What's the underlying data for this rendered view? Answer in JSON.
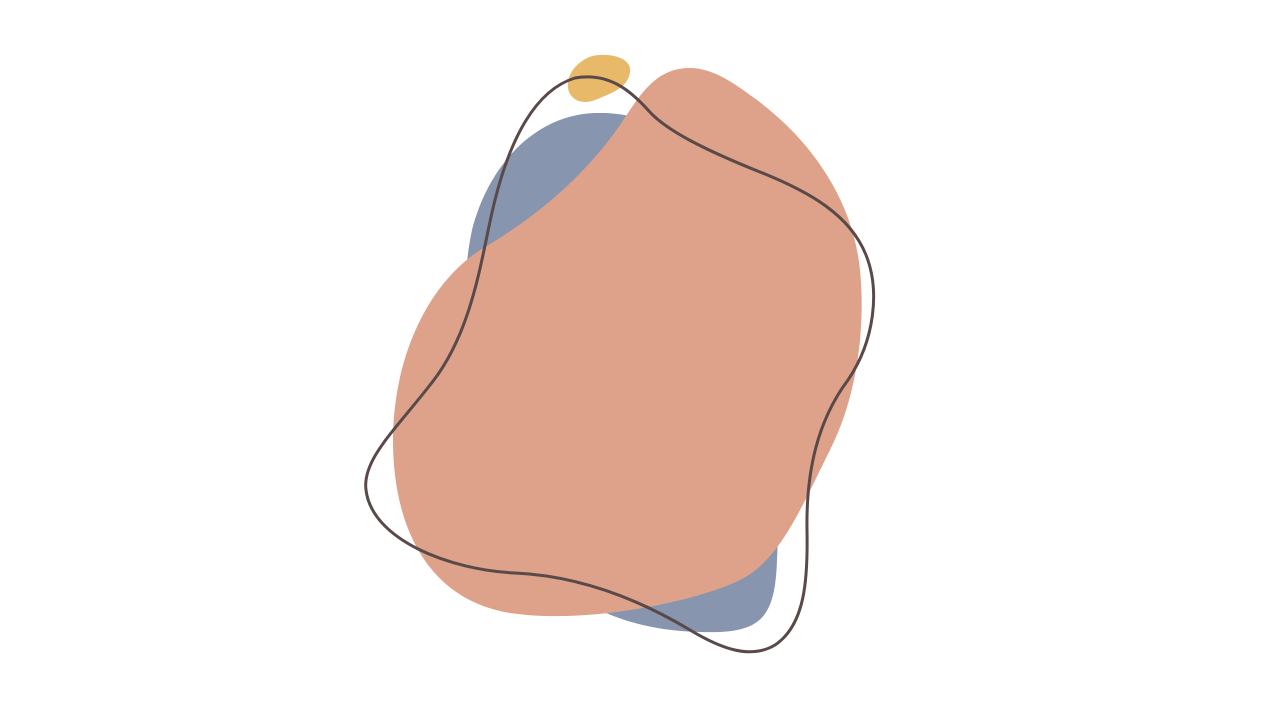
{
  "scene": {
    "background_color": "#ffffff",
    "shapes": [
      {
        "name": "blue-blob",
        "color": "#8795ae"
      },
      {
        "name": "peach-blob",
        "color": "#dea28a"
      },
      {
        "name": "yellow-blob",
        "color": "#e8b968"
      },
      {
        "name": "outline-loop",
        "color": "#594a49"
      }
    ]
  }
}
